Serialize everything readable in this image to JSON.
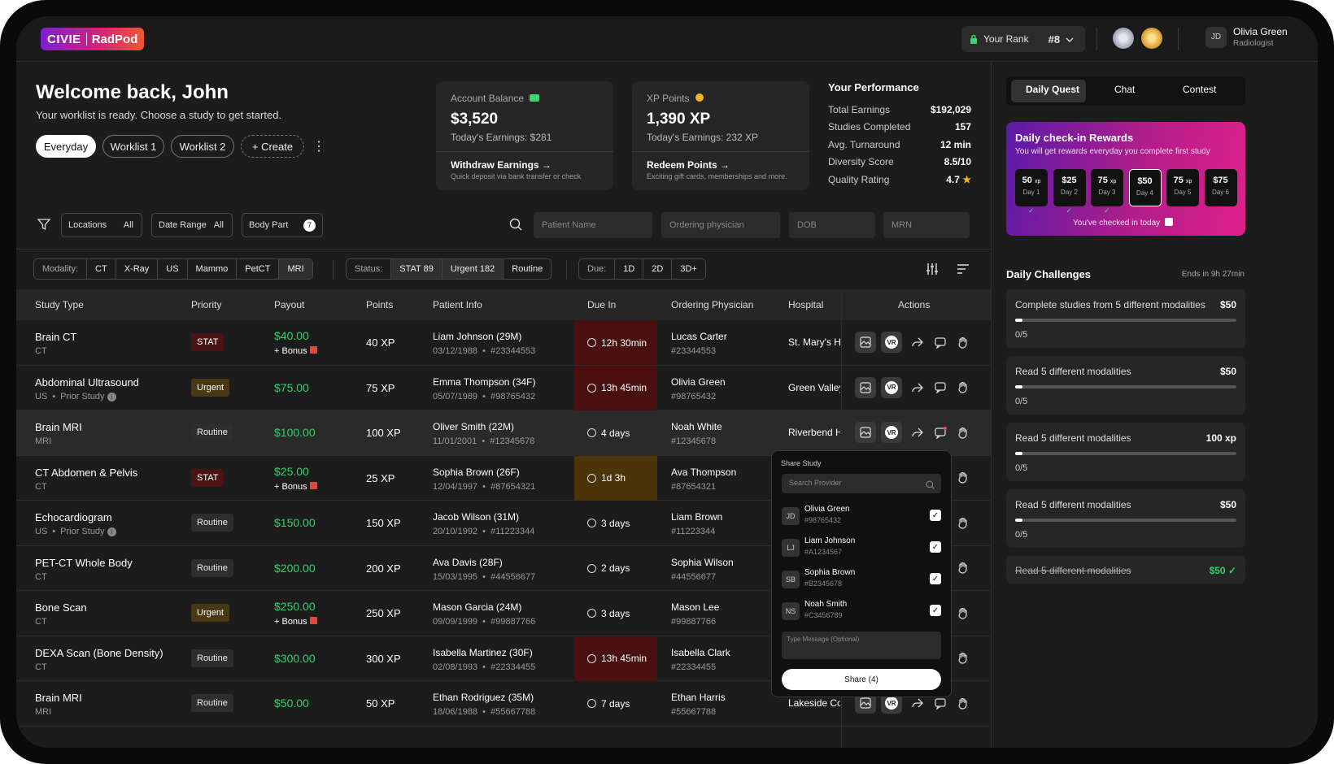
{
  "header": {
    "logo_a": "CIVIE",
    "logo_b": "RadPod",
    "rank_label": "Your Rank",
    "rank_value": "#8",
    "user_initials": "JD",
    "user_name": "Olivia Green",
    "user_role": "Radiologist"
  },
  "welcome": {
    "title": "Welcome back, John",
    "subtitle": "Your worklist is ready. Choose a study to get started."
  },
  "worklists": [
    "Everyday",
    "Worklist 1",
    "Worklist 2",
    "+ Create"
  ],
  "balance": {
    "label": "Account Balance",
    "value": "$3,520",
    "today": "Today's Earnings: $281",
    "action": "Withdraw Earnings",
    "action_sub": "Quick deposit via bank transfer or check"
  },
  "xp": {
    "label": "XP Points",
    "value": "1,390 XP",
    "today": "Today's Earnings: 232 XP",
    "action": "Redeem Points",
    "action_sub": "Exciting gift cards, memberships and more."
  },
  "performance": {
    "title": "Your Performance",
    "rows": [
      [
        "Total Earnings",
        "$192,029"
      ],
      [
        "Studies Completed",
        "157"
      ],
      [
        "Avg. Turnaround",
        "12 min"
      ],
      [
        "Diversity Score",
        "8.5/10"
      ],
      [
        "Quality Rating",
        "4.7"
      ]
    ]
  },
  "filters": {
    "locations": "Locations",
    "locations_val": "All",
    "date": "Date Range",
    "date_val": "All",
    "body": "Body Part",
    "body_count": "7",
    "patient_ph": "Patient Name",
    "physician_ph": "Ordering physician",
    "dob_ph": "DOB",
    "mrn_ph": "MRN"
  },
  "modality": [
    "Modality:",
    "CT",
    "X-Ray",
    "US",
    "Mammo",
    "PetCT",
    "MRI"
  ],
  "status": [
    "Status:",
    "STAT 89",
    "Urgent 182",
    "Routine"
  ],
  "due_filter": [
    "Due:",
    "1D",
    "2D",
    "3D+"
  ],
  "columns": [
    "Study Type",
    "Priority",
    "Payout",
    "Points",
    "Patient Info",
    "Due In",
    "Ordering Physician",
    "Hospital",
    "Actions"
  ],
  "rows": [
    {
      "study": "Brain CT",
      "mod": "CT",
      "prior": "",
      "priority": "STAT",
      "pay": "$40.00",
      "bonus": "+ Bonus",
      "pts": "40 XP",
      "patient": "Liam Johnson (29M)",
      "pinfo": "03/12/1988  •  #23344553",
      "due": "12h 30min",
      "doc": "Lucas Carter",
      "docid": "#23344553",
      "hosp": "St. Mary's Ho"
    },
    {
      "study": "Abdominal Ultrasound",
      "mod": "US",
      "prior": "Prior Study",
      "priority": "Urgent",
      "pay": "$75.00",
      "bonus": "",
      "pts": "75 XP",
      "patient": "Emma Thompson (34F)",
      "pinfo": "05/07/1989  •  #98765432",
      "due": "13h 45min",
      "doc": "Olivia Green",
      "docid": "#98765432",
      "hosp": "Green Valley"
    },
    {
      "study": "Brain MRI",
      "mod": "MRI",
      "prior": "",
      "priority": "Routine",
      "pay": "$100.00",
      "bonus": "",
      "pts": "100 XP",
      "patient": "Oliver Smith (22M)",
      "pinfo": "11/01/2001  •  #12345678",
      "due": "4 days",
      "doc": "Noah White",
      "docid": "#12345678",
      "hosp": "Riverbend H"
    },
    {
      "study": "CT Abdomen & Pelvis",
      "mod": "CT",
      "prior": "",
      "priority": "STAT",
      "pay": "$25.00",
      "bonus": "+ Bonus",
      "pts": "25 XP",
      "patient": "Sophia Brown (26F)",
      "pinfo": "12/04/1997  •  #87654321",
      "due": "1d 3h",
      "doc": "Ava Thompson",
      "docid": "#87654321",
      "hosp": ""
    },
    {
      "study": "Echocardiogram",
      "mod": "US",
      "prior": "Prior Study",
      "priority": "Routine",
      "pay": "$150.00",
      "bonus": "",
      "pts": "150 XP",
      "patient": "Jacob Wilson (31M)",
      "pinfo": "20/10/1992  •  #11223344",
      "due": "3 days",
      "doc": "Liam Brown",
      "docid": "#11223344",
      "hosp": ""
    },
    {
      "study": "PET-CT Whole Body",
      "mod": "CT",
      "prior": "",
      "priority": "Routine",
      "pay": "$200.00",
      "bonus": "",
      "pts": "200 XP",
      "patient": "Ava Davis (28F)",
      "pinfo": "15/03/1995  •  #44556677",
      "due": "2 days",
      "doc": "Sophia Wilson",
      "docid": "#44556677",
      "hosp": ""
    },
    {
      "study": "Bone Scan",
      "mod": "CT",
      "prior": "",
      "priority": "Urgent",
      "pay": "$250.00",
      "bonus": "+ Bonus",
      "pts": "250 XP",
      "patient": "Mason Garcia (24M)",
      "pinfo": "09/09/1999  •  #99887766",
      "due": "3 days",
      "doc": "Mason Lee",
      "docid": "#99887766",
      "hosp": ""
    },
    {
      "study": "DEXA Scan (Bone Density)",
      "mod": "CT",
      "prior": "",
      "priority": "Routine",
      "pay": "$300.00",
      "bonus": "",
      "pts": "300 XP",
      "patient": "Isabella Martinez (30F)",
      "pinfo": "02/08/1993  •  #22334455",
      "due": "13h 45min",
      "doc": "Isabella Clark",
      "docid": "#22334455",
      "hosp": ""
    },
    {
      "study": "Brain MRI",
      "mod": "MRI",
      "prior": "",
      "priority": "Routine",
      "pay": "$50.00",
      "bonus": "",
      "pts": "50 XP",
      "patient": "Ethan Rodriguez (35M)",
      "pinfo": "18/06/1988  •  #55667788",
      "due": "7 days",
      "doc": "Ethan Harris",
      "docid": "#55667788",
      "hosp": "Lakeside Co"
    }
  ],
  "share": {
    "title": "Share Study",
    "search_ph": "Search Provider",
    "people": [
      [
        "JD",
        "Olivia Green",
        "#98765432"
      ],
      [
        "LJ",
        "Liam Johnson",
        "#A1234567"
      ],
      [
        "SB",
        "Sophia Brown",
        "#B2345678"
      ],
      [
        "NS",
        "Noah Smith",
        "#C3456789"
      ]
    ],
    "msg_ph": "Type Message (Optional)",
    "button": "Share (4)"
  },
  "right": {
    "tabs": [
      "Daily Quest",
      "Chat",
      "Contest"
    ],
    "quest_title": "Daily check-in Rewards",
    "quest_sub": "You will get rewards everyday you complete first study",
    "days": [
      [
        "50",
        "xp",
        "Day 1"
      ],
      [
        "$25",
        "",
        "Day 2"
      ],
      [
        "75",
        "xp",
        "Day 3"
      ],
      [
        "$50",
        "",
        "Day 4"
      ],
      [
        "75",
        "xp",
        "Day 5"
      ],
      [
        "$75",
        "",
        "Day 6"
      ]
    ],
    "checked": "You've checked in today",
    "chal_title": "Daily Challenges",
    "chal_ends": "Ends in 9h 27min",
    "challenges": [
      [
        "Complete studies from 5 different modalities",
        "$50",
        "0/5"
      ],
      [
        "Read 5 different modalities",
        "$50",
        "0/5"
      ],
      [
        "Read 5 different modalities",
        "100 xp",
        "0/5"
      ],
      [
        "Read 5 different modalities",
        "$50",
        "0/5"
      ]
    ],
    "done": [
      "Read 5 different modalities",
      "$50"
    ]
  },
  "colors": {
    "bg": "#1c1c1c",
    "green": "#33d06a",
    "stat": "#4a1414",
    "urgent": "#4a3814"
  }
}
